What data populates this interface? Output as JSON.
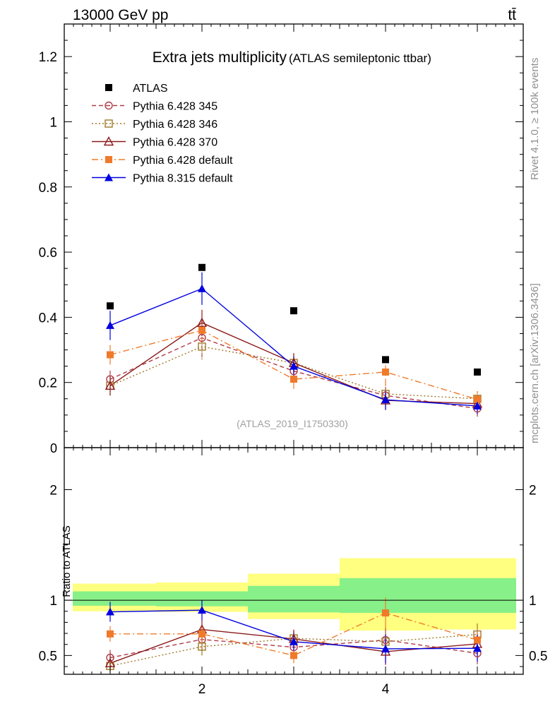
{
  "header": {
    "left": "13000 GeV pp",
    "right": "tt̄"
  },
  "side_labels": {
    "rivet": "Rivet 4.1.0, ≥ 100k events",
    "mcplots": "mcplots.cern.ch [arXiv:1306.3436]"
  },
  "chart_data": [
    {
      "type": "line",
      "panel": "main",
      "title": "Extra jets multiplicity",
      "subtitle": "(ATLAS semileptonic ttbar)",
      "watermark": "(ATLAS_2019_I1750330)",
      "xlabel": "",
      "ylabel": "",
      "xlim": [
        0.5,
        5.5
      ],
      "ylim": [
        0,
        1.3
      ],
      "y_ticks": [
        0,
        0.2,
        0.4,
        0.6,
        0.8,
        1,
        1.2
      ],
      "y_tick_labels": [
        "0",
        "0.2",
        "0.4",
        "0.6",
        "0.8",
        "1",
        "1.2"
      ],
      "x": [
        1,
        2,
        3,
        4,
        5
      ],
      "series": [
        {
          "name": "ATLAS",
          "color": "#000000",
          "style": "points",
          "marker": "filled-square",
          "values": [
            0.435,
            0.553,
            0.42,
            0.27,
            0.232
          ]
        },
        {
          "name": "Pythia 6.428 345",
          "color": "#b03a48",
          "style": "dashed",
          "marker": "open-circle",
          "values": [
            0.21,
            0.337,
            0.235,
            0.16,
            0.12
          ],
          "errors": [
            0.03,
            0.06,
            0.03,
            0.03,
            0.025
          ]
        },
        {
          "name": "Pythia 6.428 346",
          "color": "#a07828",
          "style": "dotted",
          "marker": "open-square",
          "values": [
            0.19,
            0.31,
            0.26,
            0.165,
            0.15
          ],
          "errors": [
            0.03,
            0.04,
            0.03,
            0.03,
            0.025
          ]
        },
        {
          "name": "Pythia 6.428 370",
          "color": "#8b1a1a",
          "style": "solid",
          "marker": "open-triangle",
          "values": [
            0.19,
            0.383,
            0.26,
            0.145,
            0.135
          ],
          "errors": [
            0.03,
            0.04,
            0.03,
            0.03,
            0.025
          ]
        },
        {
          "name": "Pythia 6.428 default",
          "color": "#f07a2a",
          "style": "dashdot",
          "marker": "filled-square",
          "values": [
            0.285,
            0.36,
            0.21,
            0.232,
            0.148
          ],
          "errors": [
            0.03,
            0.04,
            0.03,
            0.04,
            0.025
          ]
        },
        {
          "name": "Pythia 8.315 default",
          "color": "#0000e0",
          "style": "solid",
          "marker": "filled-triangle",
          "values": [
            0.375,
            0.488,
            0.25,
            0.147,
            0.128
          ],
          "errors": [
            0.045,
            0.05,
            0.03,
            0.03,
            0.025
          ]
        }
      ]
    },
    {
      "type": "line",
      "panel": "ratio",
      "ylabel": "Ratio to ATLAS",
      "xlim": [
        0.5,
        5.5
      ],
      "ylim": [
        0.33,
        2.38
      ],
      "y_ticks": [
        0.5,
        1,
        2
      ],
      "y_tick_labels": [
        "0.5",
        "1",
        "2"
      ],
      "x_ticks": [
        2,
        4
      ],
      "x_tick_labels": [
        "2",
        "4"
      ],
      "x": [
        1,
        2,
        3,
        4,
        5
      ],
      "bins": [
        [
          0.5,
          1.5
        ],
        [
          1.5,
          2.5
        ],
        [
          2.5,
          3.5
        ],
        [
          3.5,
          4.5
        ],
        [
          4.5,
          5.5
        ]
      ],
      "band_outer": {
        "color": "#ffff80",
        "low": [
          0.9,
          0.895,
          0.83,
          0.725,
          0.735
        ],
        "high": [
          1.15,
          1.16,
          1.24,
          1.38,
          1.38
        ]
      },
      "band_inner": {
        "color": "#88f088",
        "low": [
          0.95,
          0.945,
          0.89,
          0.885,
          0.885
        ],
        "high": [
          1.08,
          1.08,
          1.13,
          1.2,
          1.2
        ]
      },
      "series": [
        {
          "name": "Pythia 6.428 345",
          "values": [
            0.48,
            0.645,
            0.575,
            0.64,
            0.52
          ],
          "errors": [
            0.07,
            0.1,
            0.07,
            0.11,
            0.1
          ]
        },
        {
          "name": "Pythia 6.428 346",
          "values": [
            0.405,
            0.58,
            0.655,
            0.625,
            0.69
          ],
          "errors": [
            0.06,
            0.08,
            0.08,
            0.1,
            0.1
          ]
        },
        {
          "name": "Pythia 6.428 370",
          "values": [
            0.43,
            0.735,
            0.65,
            0.535,
            0.605
          ],
          "errors": [
            0.07,
            0.09,
            0.08,
            0.12,
            0.1
          ]
        },
        {
          "name": "Pythia 6.428 default",
          "values": [
            0.695,
            0.695,
            0.5,
            0.885,
            0.64
          ],
          "errors": [
            0.07,
            0.08,
            0.07,
            0.14,
            0.1
          ]
        },
        {
          "name": "Pythia 8.315 default",
          "values": [
            0.895,
            0.91,
            0.625,
            0.56,
            0.565
          ],
          "errors": [
            0.09,
            0.09,
            0.08,
            0.13,
            0.12
          ]
        }
      ]
    }
  ]
}
